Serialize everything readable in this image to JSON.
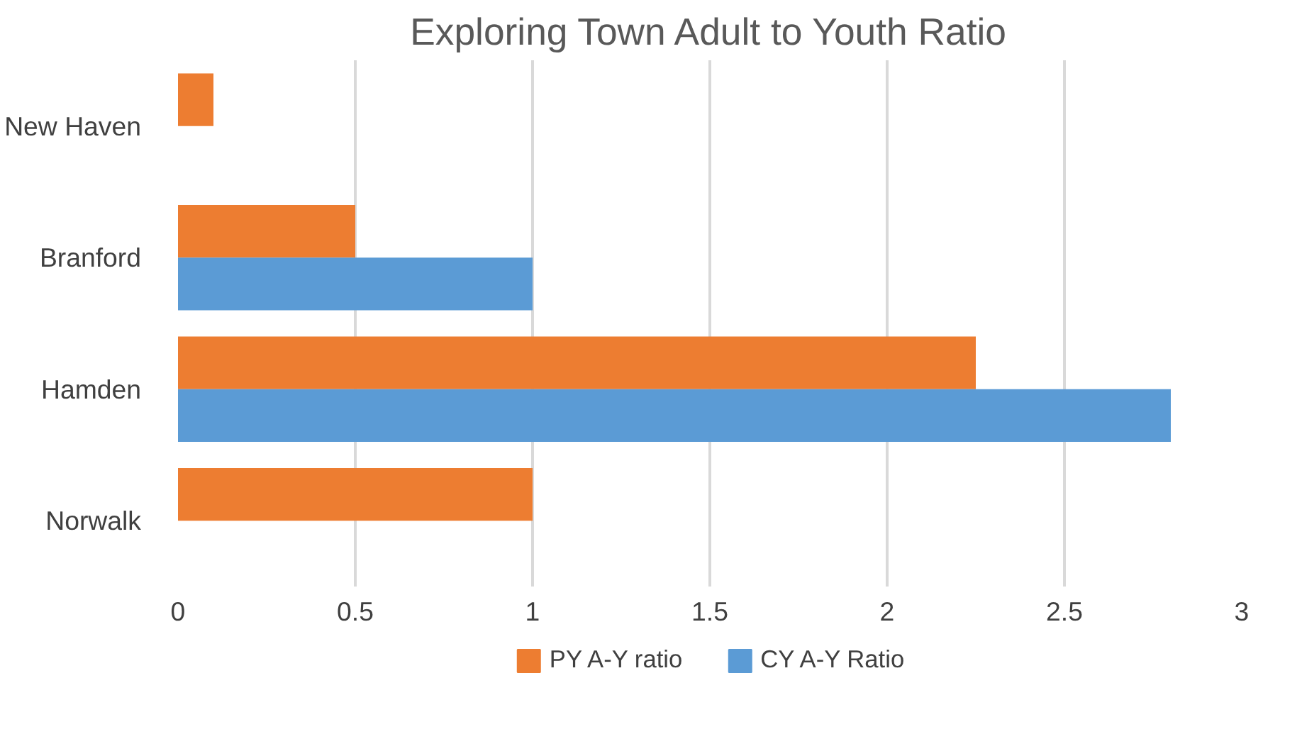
{
  "chart_data": {
    "type": "bar",
    "orientation": "horizontal",
    "title": "Exploring Town Adult to Youth Ratio",
    "categories": [
      "New Haven",
      "Branford",
      "Hamden",
      "Norwalk"
    ],
    "series": [
      {
        "name": "PY A-Y ratio",
        "color": "#ed7d31",
        "values": [
          0.1,
          0.5,
          2.25,
          1
        ]
      },
      {
        "name": "CY A-Y Ratio",
        "color": "#5b9bd5",
        "values": [
          null,
          1,
          2.8,
          null
        ]
      }
    ],
    "xlim": [
      0,
      3
    ],
    "xticks": [
      0,
      0.5,
      1,
      1.5,
      2,
      2.5,
      3
    ],
    "grid": "x",
    "legend": "bottom"
  }
}
